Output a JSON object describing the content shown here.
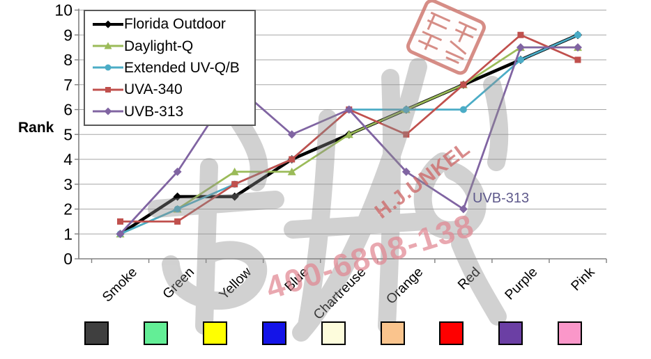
{
  "watermarks": {
    "phone": "400-6808-138",
    "brand": "H.J.UNKEL"
  },
  "chart_data": {
    "type": "line",
    "title": "",
    "xlabel": "",
    "ylabel": "Rank",
    "ylim": [
      0,
      10
    ],
    "y_ticks": [
      0,
      1,
      2,
      3,
      4,
      5,
      6,
      7,
      8,
      9,
      10
    ],
    "grid": true,
    "legend_position": "top-left",
    "categories": [
      "Smoke",
      "Green",
      "Yellow",
      "Blue",
      "Chartreuse",
      "Orange",
      "Red",
      "Purple",
      "Pink"
    ],
    "category_swatch_colors": [
      "#3F3F3F",
      "#63EE96",
      "#FFFF00",
      "#1414E8",
      "#FDFCDC",
      "#FAC48D",
      "#FE0000",
      "#6B3FA4",
      "#FA97C9"
    ],
    "series": [
      {
        "name": "Florida Outdoor",
        "color": "#000000",
        "marker": "diamond",
        "values": [
          1,
          2.5,
          2.5,
          4,
          5,
          6,
          7,
          8,
          9
        ]
      },
      {
        "name": "Daylight-Q",
        "color": "#9BBB59",
        "marker": "triangle",
        "values": [
          1,
          2,
          3.5,
          3.5,
          5,
          6,
          7,
          8.5,
          8.5
        ]
      },
      {
        "name": "Extended UV-Q/B",
        "color": "#4BACC6",
        "marker": "circle",
        "values": [
          1,
          2,
          3,
          4,
          6,
          6,
          6,
          8,
          9
        ]
      },
      {
        "name": "UVA-340",
        "color": "#C0504D",
        "marker": "square",
        "values": [
          1.5,
          1.5,
          3,
          4,
          6,
          5,
          7,
          9,
          8
        ]
      },
      {
        "name": "UVB-313",
        "color": "#8064A2",
        "marker": "diamond",
        "values": [
          1,
          3.5,
          7,
          5,
          6,
          3.5,
          2,
          8.5,
          8.5
        ]
      }
    ],
    "annotation": {
      "text": "UVB-313",
      "color": "#5F5A8C"
    }
  }
}
